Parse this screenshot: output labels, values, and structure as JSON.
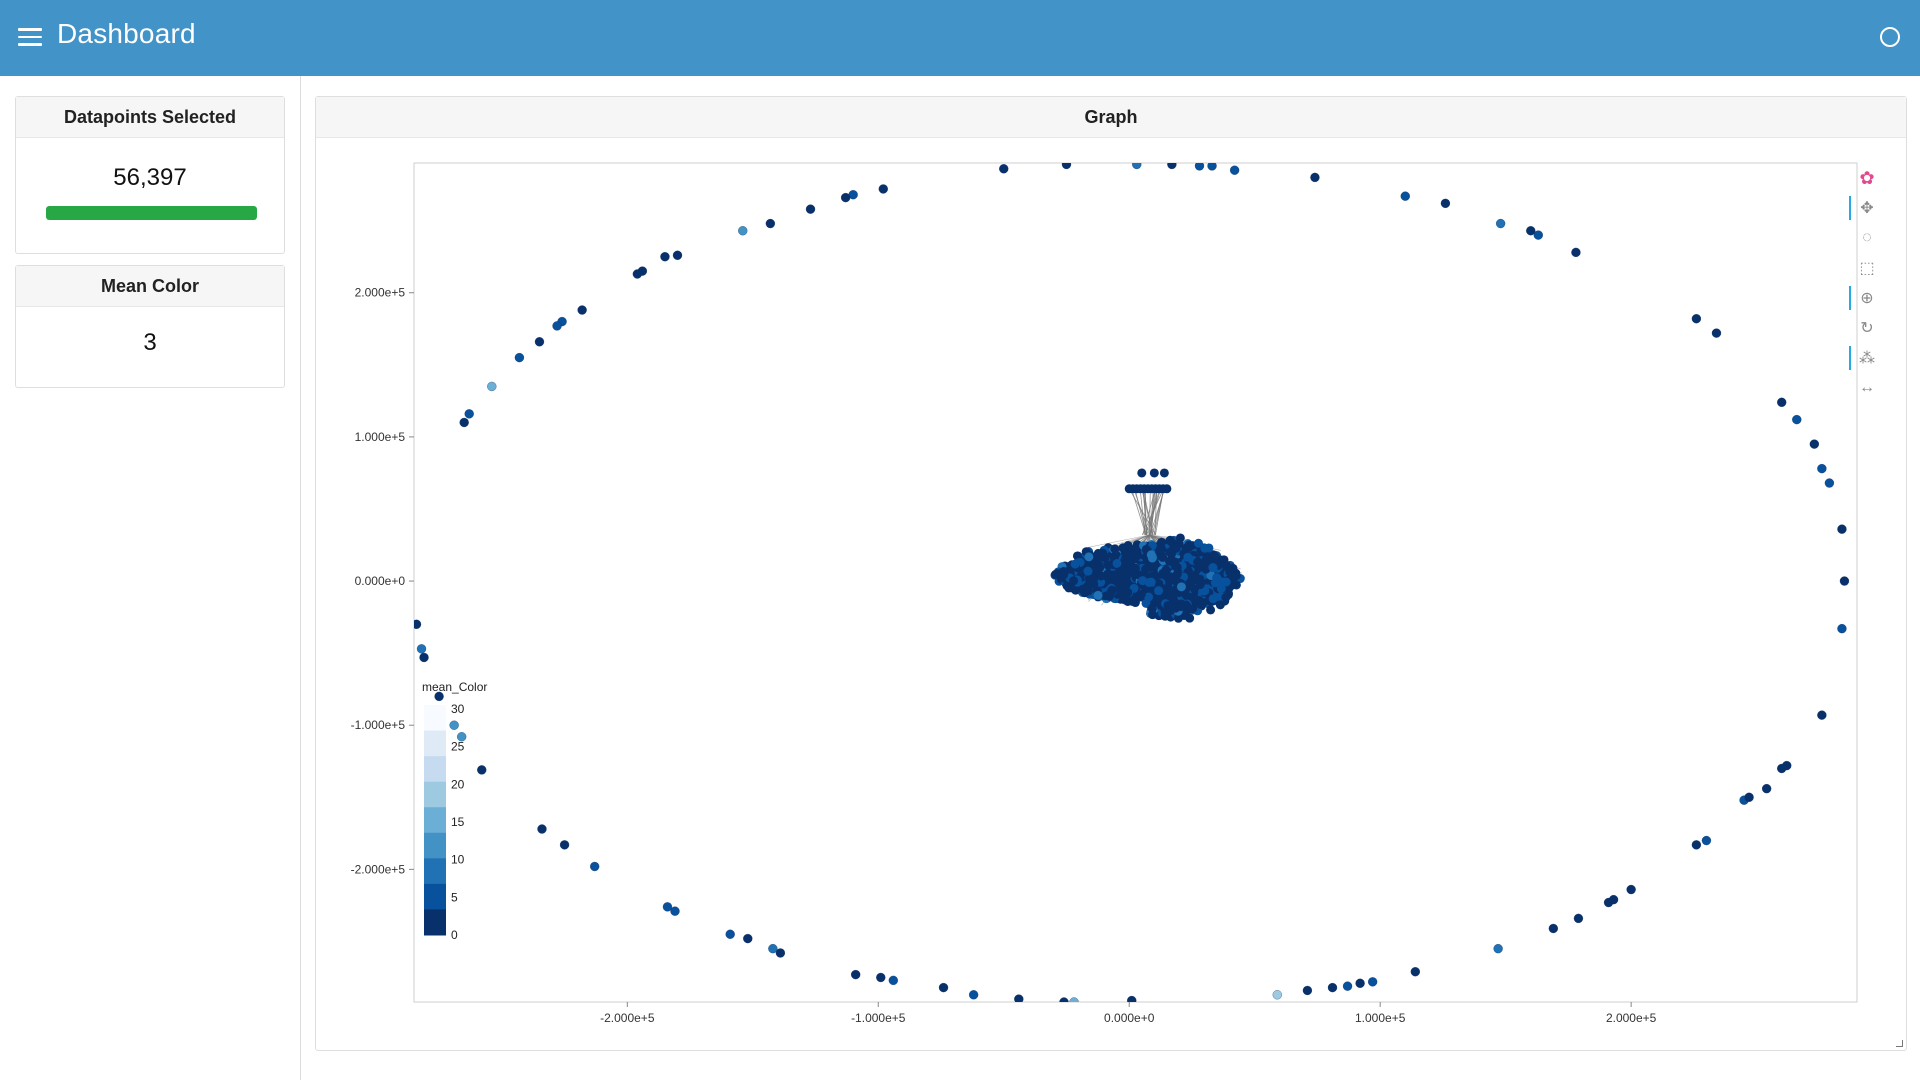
{
  "header": {
    "title": "Dashboard",
    "menu_icon": "hamburger-menu-icon",
    "status_icon": "circle-icon"
  },
  "sidebar": {
    "datapoints_card": {
      "title": "Datapoints Selected",
      "value": "56,397",
      "progress_fraction": 1.0,
      "progress_color": "#28a745"
    },
    "mean_color_card": {
      "title": "Mean Color",
      "value": "3"
    }
  },
  "graph": {
    "title": "Graph",
    "toolbar": [
      {
        "name": "bokeh-logo-icon",
        "glyph": "✿"
      },
      {
        "name": "pan-tool-icon",
        "glyph": "✥",
        "active": true
      },
      {
        "name": "lasso-select-icon",
        "glyph": "◌",
        "active": false
      },
      {
        "name": "box-select-icon",
        "glyph": "⬚",
        "active": false
      },
      {
        "name": "wheel-zoom-icon",
        "glyph": "⊕",
        "active": true
      },
      {
        "name": "reset-icon",
        "glyph": "↻",
        "active": false
      },
      {
        "name": "hover-tool-icon",
        "glyph": "⁂",
        "active": true
      },
      {
        "name": "x-wheel-zoom-icon",
        "glyph": "↔",
        "active": false
      }
    ]
  },
  "chart_data": {
    "type": "scatter",
    "title": "",
    "xlabel": "",
    "ylabel": "",
    "xlim": [
      -285000,
      290000
    ],
    "ylim": [
      -292000,
      290000
    ],
    "x_ticks": [
      -200000,
      -100000,
      0,
      100000,
      200000
    ],
    "x_tick_labels": [
      "-2.000e+5",
      "-1.000e+5",
      "0.000e+0",
      "1.000e+5",
      "2.000e+5"
    ],
    "y_ticks": [
      -200000,
      -100000,
      0,
      100000,
      200000
    ],
    "y_tick_labels": [
      "-2.000e+5",
      "-1.000e+5",
      "0.000e+0",
      "1.000e+5",
      "2.000e+5"
    ],
    "grid": false,
    "colorbar": {
      "title": "mean_Color",
      "placement": "bottom-left",
      "ticks": [
        30,
        25,
        20,
        15,
        10,
        5,
        0
      ],
      "colors": [
        "#f7fbff",
        "#deebf7",
        "#c6dbef",
        "#9ecae1",
        "#6baed6",
        "#4292c6",
        "#2171b5",
        "#08519c",
        "#08306b"
      ]
    },
    "edge_color": "#777777",
    "ring_points": [
      [
        -284000,
        -30000,
        2
      ],
      [
        -282000,
        -47000,
        8
      ],
      [
        -281000,
        -53000,
        1
      ],
      [
        -275000,
        -80000,
        0
      ],
      [
        -269000,
        -100000,
        14
      ],
      [
        -266000,
        -108000,
        12
      ],
      [
        -258000,
        -131000,
        0
      ],
      [
        -234000,
        -172000,
        0
      ],
      [
        -225000,
        -183000,
        1
      ],
      [
        -213000,
        -198000,
        7
      ],
      [
        -184000,
        -226000,
        6
      ],
      [
        -181000,
        -229000,
        4
      ],
      [
        -159000,
        -245000,
        7
      ],
      [
        -152000,
        -248000,
        3
      ],
      [
        -142000,
        -255000,
        8
      ],
      [
        -139000,
        -258000,
        1
      ],
      [
        -109000,
        -273000,
        0
      ],
      [
        -99000,
        -275000,
        3
      ],
      [
        -94000,
        -277000,
        5
      ],
      [
        -74000,
        -282000,
        0
      ],
      [
        -62000,
        -287000,
        7
      ],
      [
        -44000,
        -290000,
        0
      ],
      [
        -26000,
        -292000,
        2
      ],
      [
        -22000,
        -292000,
        18
      ],
      [
        1000,
        -291000,
        0
      ],
      [
        59000,
        -287000,
        20
      ],
      [
        71000,
        -284000,
        0
      ],
      [
        81000,
        -282000,
        1
      ],
      [
        87000,
        -281000,
        6
      ],
      [
        92000,
        -279000,
        0
      ],
      [
        97000,
        -278000,
        4
      ],
      [
        114000,
        -271000,
        0
      ],
      [
        147000,
        -255000,
        8
      ],
      [
        169000,
        -241000,
        1
      ],
      [
        179000,
        -234000,
        2
      ],
      [
        191000,
        -223000,
        0
      ],
      [
        193000,
        -221000,
        3
      ],
      [
        200000,
        -214000,
        2
      ],
      [
        226000,
        -183000,
        0
      ],
      [
        230000,
        -180000,
        4
      ],
      [
        245000,
        -152000,
        6
      ],
      [
        247000,
        -150000,
        3
      ],
      [
        254000,
        -144000,
        1
      ],
      [
        260000,
        -130000,
        0
      ],
      [
        262000,
        -128000,
        2
      ],
      [
        276000,
        -93000,
        3
      ],
      [
        284000,
        -33000,
        5
      ],
      [
        285000,
        0,
        0
      ],
      [
        284000,
        36000,
        1
      ],
      [
        279000,
        68000,
        5
      ],
      [
        276000,
        78000,
        7
      ],
      [
        273000,
        95000,
        2
      ],
      [
        266000,
        112000,
        6
      ],
      [
        260000,
        124000,
        0
      ],
      [
        234000,
        172000,
        1
      ],
      [
        226000,
        182000,
        0
      ],
      [
        178000,
        228000,
        1
      ],
      [
        163000,
        240000,
        5
      ],
      [
        160000,
        243000,
        2
      ],
      [
        148000,
        248000,
        10
      ],
      [
        126000,
        262000,
        0
      ],
      [
        110000,
        267000,
        7
      ],
      [
        74000,
        280000,
        1
      ],
      [
        42000,
        285000,
        6
      ],
      [
        33000,
        288000,
        5
      ],
      [
        28000,
        288000,
        4
      ],
      [
        17000,
        289000,
        0
      ],
      [
        3000,
        289000,
        8
      ],
      [
        -25000,
        289000,
        0
      ],
      [
        -50000,
        286000,
        1
      ],
      [
        -98000,
        272000,
        0
      ],
      [
        -110000,
        268000,
        6
      ],
      [
        -113000,
        266000,
        1
      ],
      [
        -127000,
        258000,
        2
      ],
      [
        -143000,
        248000,
        0
      ],
      [
        -154000,
        243000,
        12
      ],
      [
        -180000,
        226000,
        0
      ],
      [
        -185000,
        225000,
        1
      ],
      [
        -194000,
        215000,
        3
      ],
      [
        -196000,
        213000,
        0
      ],
      [
        -218000,
        188000,
        0
      ],
      [
        -226000,
        180000,
        5
      ],
      [
        -228000,
        177000,
        4
      ],
      [
        -235000,
        166000,
        2
      ],
      [
        -243000,
        155000,
        5
      ],
      [
        -254000,
        135000,
        16
      ],
      [
        -263000,
        116000,
        4
      ],
      [
        -265000,
        110000,
        0
      ]
    ],
    "cluster": {
      "center": [
        8000,
        5000
      ],
      "radius_x": 35000,
      "radius_y": 24000,
      "count": 1400,
      "color_range": [
        0,
        12
      ]
    },
    "hub": {
      "top_row": [
        [
          5000,
          75000
        ],
        [
          10000,
          75000
        ],
        [
          14000,
          75000
        ]
      ],
      "bar": {
        "x_from": 0,
        "x_to": 15000,
        "y": 64000
      },
      "apex": [
        8000,
        32000
      ]
    }
  }
}
